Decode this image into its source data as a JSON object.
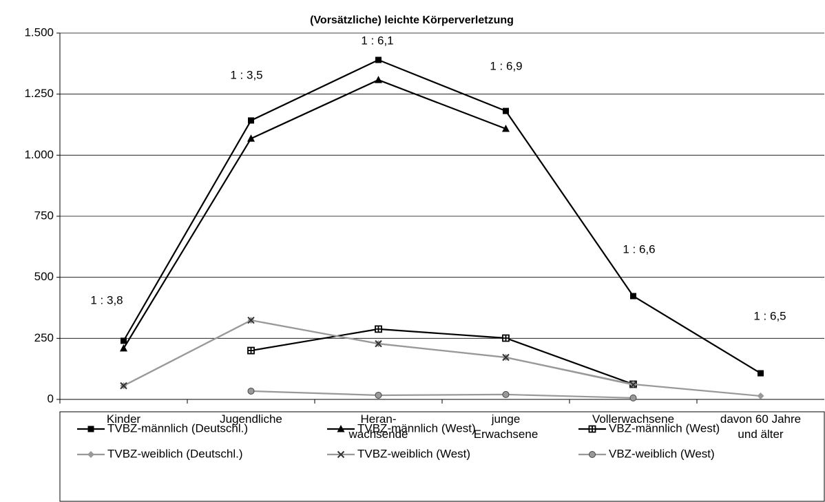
{
  "chart_data": {
    "type": "line",
    "title": "(Vorsätzliche) leichte Körperverletzung",
    "categories": [
      "Kinder",
      "Jugendliche",
      "Heran-\nwachsende",
      "junge\nErwachsene",
      "Vollerwachsene",
      "davon 60 Jahre\nund älter"
    ],
    "series": [
      {
        "name": "TVBZ-männlich (Deutschl.)",
        "color": "#000000",
        "marker": "square",
        "values": [
          240,
          1142,
          1390,
          1181,
          423,
          107
        ]
      },
      {
        "name": "TVBZ-männlich (West)",
        "color": "#000000",
        "marker": "triangle",
        "values": [
          209,
          1068,
          1308,
          1108,
          null,
          null
        ]
      },
      {
        "name": "VBZ-männlich (West)",
        "color": "#000000",
        "marker": "square-cross",
        "values": [
          null,
          200,
          288,
          251,
          62,
          null
        ]
      },
      {
        "name": "TVBZ-weiblich (Deutschl.)",
        "color": "#999999",
        "marker": "diamond",
        "values": [
          56,
          324,
          228,
          172,
          62,
          14
        ]
      },
      {
        "name": "TVBZ-weiblich (West)",
        "color": "#999999",
        "marker": "x",
        "values": [
          56,
          324,
          228,
          172,
          60,
          null
        ]
      },
      {
        "name": "VBZ-weiblich (West)",
        "color": "#999999",
        "marker": "circle",
        "values": [
          null,
          34,
          17,
          20,
          6,
          null
        ]
      }
    ],
    "annotations": [
      "1 : 3,8",
      "1 : 3,5",
      "1 : 6,1",
      "1 : 6,9",
      "1 : 6,6",
      "1 : 6,5"
    ],
    "ylim": [
      0,
      1500
    ],
    "yticks": [
      0,
      250,
      500,
      750,
      {
        "value": 1000,
        "label": "1.000"
      },
      {
        "value": 1250,
        "label": "1.250"
      },
      {
        "value": 1500,
        "label": "1.500"
      }
    ],
    "grid": true,
    "legend": "bottom"
  }
}
